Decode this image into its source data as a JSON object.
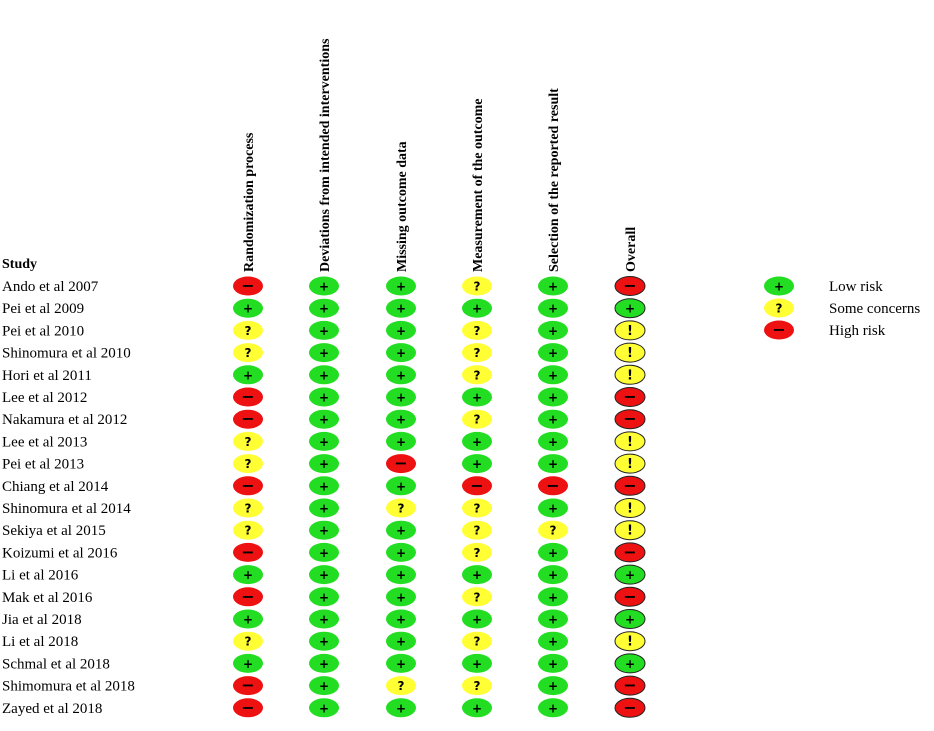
{
  "chart_data": {
    "type": "table",
    "row_header": "Study",
    "columns": [
      "Randomization process",
      "Deviations from intended interventions",
      "Missing outcome data",
      "Measurement of the outcome",
      "Selection of the reported result",
      "Overall"
    ],
    "rows": [
      {
        "study": "Ando et al 2007",
        "judgements": [
          "high",
          "low",
          "low",
          "some",
          "low",
          "high"
        ]
      },
      {
        "study": "Pei et al 2009",
        "judgements": [
          "low",
          "low",
          "low",
          "low",
          "low",
          "low"
        ]
      },
      {
        "study": "Pei et al 2010",
        "judgements": [
          "some",
          "low",
          "low",
          "some",
          "low",
          "some"
        ]
      },
      {
        "study": "Shinomura et al 2010",
        "judgements": [
          "some",
          "low",
          "low",
          "some",
          "low",
          "some"
        ]
      },
      {
        "study": "Hori et al 2011",
        "judgements": [
          "low",
          "low",
          "low",
          "some",
          "low",
          "some"
        ]
      },
      {
        "study": "Lee et al 2012",
        "judgements": [
          "high",
          "low",
          "low",
          "low",
          "low",
          "high"
        ]
      },
      {
        "study": "Nakamura et al 2012",
        "judgements": [
          "high",
          "low",
          "low",
          "some",
          "low",
          "high"
        ]
      },
      {
        "study": "Lee et al 2013",
        "judgements": [
          "some",
          "low",
          "low",
          "low",
          "low",
          "some"
        ]
      },
      {
        "study": "Pei et al 2013",
        "judgements": [
          "some",
          "low",
          "high",
          "low",
          "low",
          "some"
        ]
      },
      {
        "study": "Chiang et al 2014",
        "judgements": [
          "high",
          "low",
          "low",
          "high",
          "high",
          "high"
        ]
      },
      {
        "study": "Shinomura et al 2014",
        "judgements": [
          "some",
          "low",
          "some",
          "some",
          "low",
          "some"
        ]
      },
      {
        "study": "Sekiya et al 2015",
        "judgements": [
          "some",
          "low",
          "low",
          "some",
          "some",
          "some"
        ]
      },
      {
        "study": "Koizumi et al 2016",
        "judgements": [
          "high",
          "low",
          "low",
          "some",
          "low",
          "high"
        ]
      },
      {
        "study": "Li et al 2016",
        "judgements": [
          "low",
          "low",
          "low",
          "low",
          "low",
          "low"
        ]
      },
      {
        "study": "Mak et al 2016",
        "judgements": [
          "high",
          "low",
          "low",
          "some",
          "low",
          "high"
        ]
      },
      {
        "study": "Jia et al 2018",
        "judgements": [
          "low",
          "low",
          "low",
          "low",
          "low",
          "low"
        ]
      },
      {
        "study": "Li et al 2018",
        "judgements": [
          "some",
          "low",
          "low",
          "some",
          "low",
          "some"
        ]
      },
      {
        "study": "Schmal et al 2018",
        "judgements": [
          "low",
          "low",
          "low",
          "low",
          "low",
          "low"
        ]
      },
      {
        "study": "Shimomura et al 2018",
        "judgements": [
          "high",
          "low",
          "some",
          "some",
          "low",
          "high"
        ]
      },
      {
        "study": "Zayed et al 2018",
        "judgements": [
          "high",
          "low",
          "low",
          "low",
          "low",
          "high"
        ]
      }
    ],
    "legend": [
      {
        "key": "low",
        "label": "Low risk"
      },
      {
        "key": "some",
        "label": "Some concerns"
      },
      {
        "key": "high",
        "label": "High risk"
      }
    ],
    "legend_placement": "top-right",
    "colors": {
      "low": "#22dd22",
      "some": "#ffff33",
      "high": "#ee1111"
    },
    "symbols": {
      "low": "+",
      "some": "?",
      "high": "−",
      "overall_some": "!"
    }
  }
}
